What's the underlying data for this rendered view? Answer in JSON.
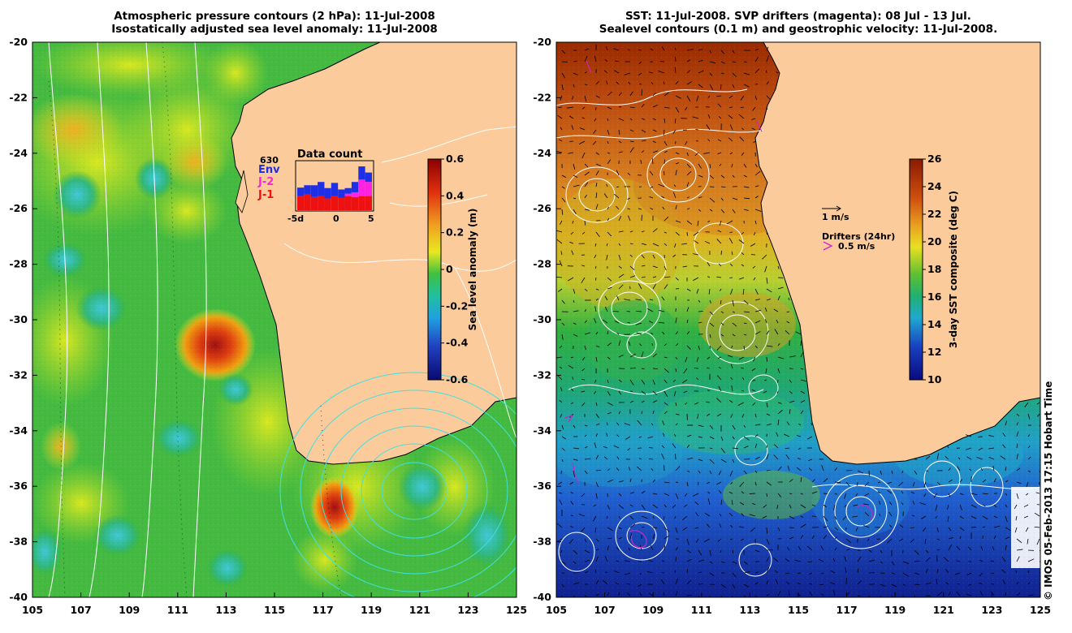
{
  "left_panel": {
    "title_line1": "Atmospheric pressure contours (2 hPa): 11-Jul-2008",
    "title_line2": "Isostatically adjusted sea level anomaly: 11-Jul-2008",
    "x_ticks": [
      "105",
      "107",
      "109",
      "111",
      "113",
      "115",
      "117",
      "119",
      "121",
      "123",
      "125"
    ],
    "y_ticks": [
      "-20",
      "-22",
      "-24",
      "-26",
      "-28",
      "-30",
      "-32",
      "-34",
      "-36",
      "-38",
      "-40"
    ],
    "colorbar": {
      "label": "Sea level anomaly (m)",
      "ticks": [
        "0.6",
        "0.4",
        "0.2",
        "0",
        "-0.2",
        "-0.4",
        "-0.6"
      ]
    },
    "data_count": {
      "title": "Data count",
      "max": "630",
      "legend": [
        {
          "label": "Env",
          "color": "#1f2fe6"
        },
        {
          "label": "J-2",
          "color": "#ff22e0"
        },
        {
          "label": "J-1",
          "color": "#ee1111"
        }
      ],
      "x_ticks": [
        "-5d",
        "0",
        "5"
      ],
      "bars": [
        {
          "j1": 0.3,
          "j2": 0.0,
          "env": 0.18
        },
        {
          "j1": 0.33,
          "j2": 0.0,
          "env": 0.2
        },
        {
          "j1": 0.28,
          "j2": 0.0,
          "env": 0.25
        },
        {
          "j1": 0.3,
          "j2": 0.0,
          "env": 0.3
        },
        {
          "j1": 0.25,
          "j2": 0.0,
          "env": 0.22
        },
        {
          "j1": 0.3,
          "j2": 0.0,
          "env": 0.28
        },
        {
          "j1": 0.26,
          "j2": 0.0,
          "env": 0.18
        },
        {
          "j1": 0.3,
          "j2": 0.05,
          "env": 0.12
        },
        {
          "j1": 0.28,
          "j2": 0.1,
          "env": 0.22
        },
        {
          "j1": 0.3,
          "j2": 0.35,
          "env": 0.28
        },
        {
          "j1": 0.3,
          "j2": 0.3,
          "env": 0.2
        }
      ]
    }
  },
  "right_panel": {
    "title_line1": "SST: 11-Jul-2008. SVP drifters (magenta): 08 Jul - 13 Jul.",
    "title_line2": "Sealevel contours (0.1 m) and geostrophic velocity: 11-Jul-2008.",
    "x_ticks": [
      "105",
      "107",
      "109",
      "111",
      "113",
      "115",
      "117",
      "119",
      "121",
      "123",
      "125"
    ],
    "y_ticks": [
      "-20",
      "-22",
      "-24",
      "-26",
      "-28",
      "-30",
      "-32",
      "-34",
      "-36",
      "-38",
      "-40"
    ],
    "colorbar": {
      "label": "3-day SST composite (deg C)",
      "ticks": [
        "26",
        "24",
        "22",
        "20",
        "18",
        "16",
        "14",
        "12",
        "10"
      ]
    },
    "velocity_legend": "1 m/s",
    "drifters_title": "Drifters (24hr)",
    "drifters_scale": "0.5 m/s"
  },
  "credit": "© IMOS 05-Feb-2013 17:15 Hobart Time",
  "colors": {
    "land": "#fccb9c",
    "coast": "#000000",
    "contour": "#ffffff",
    "pressure_contour": "#40e0e0"
  }
}
